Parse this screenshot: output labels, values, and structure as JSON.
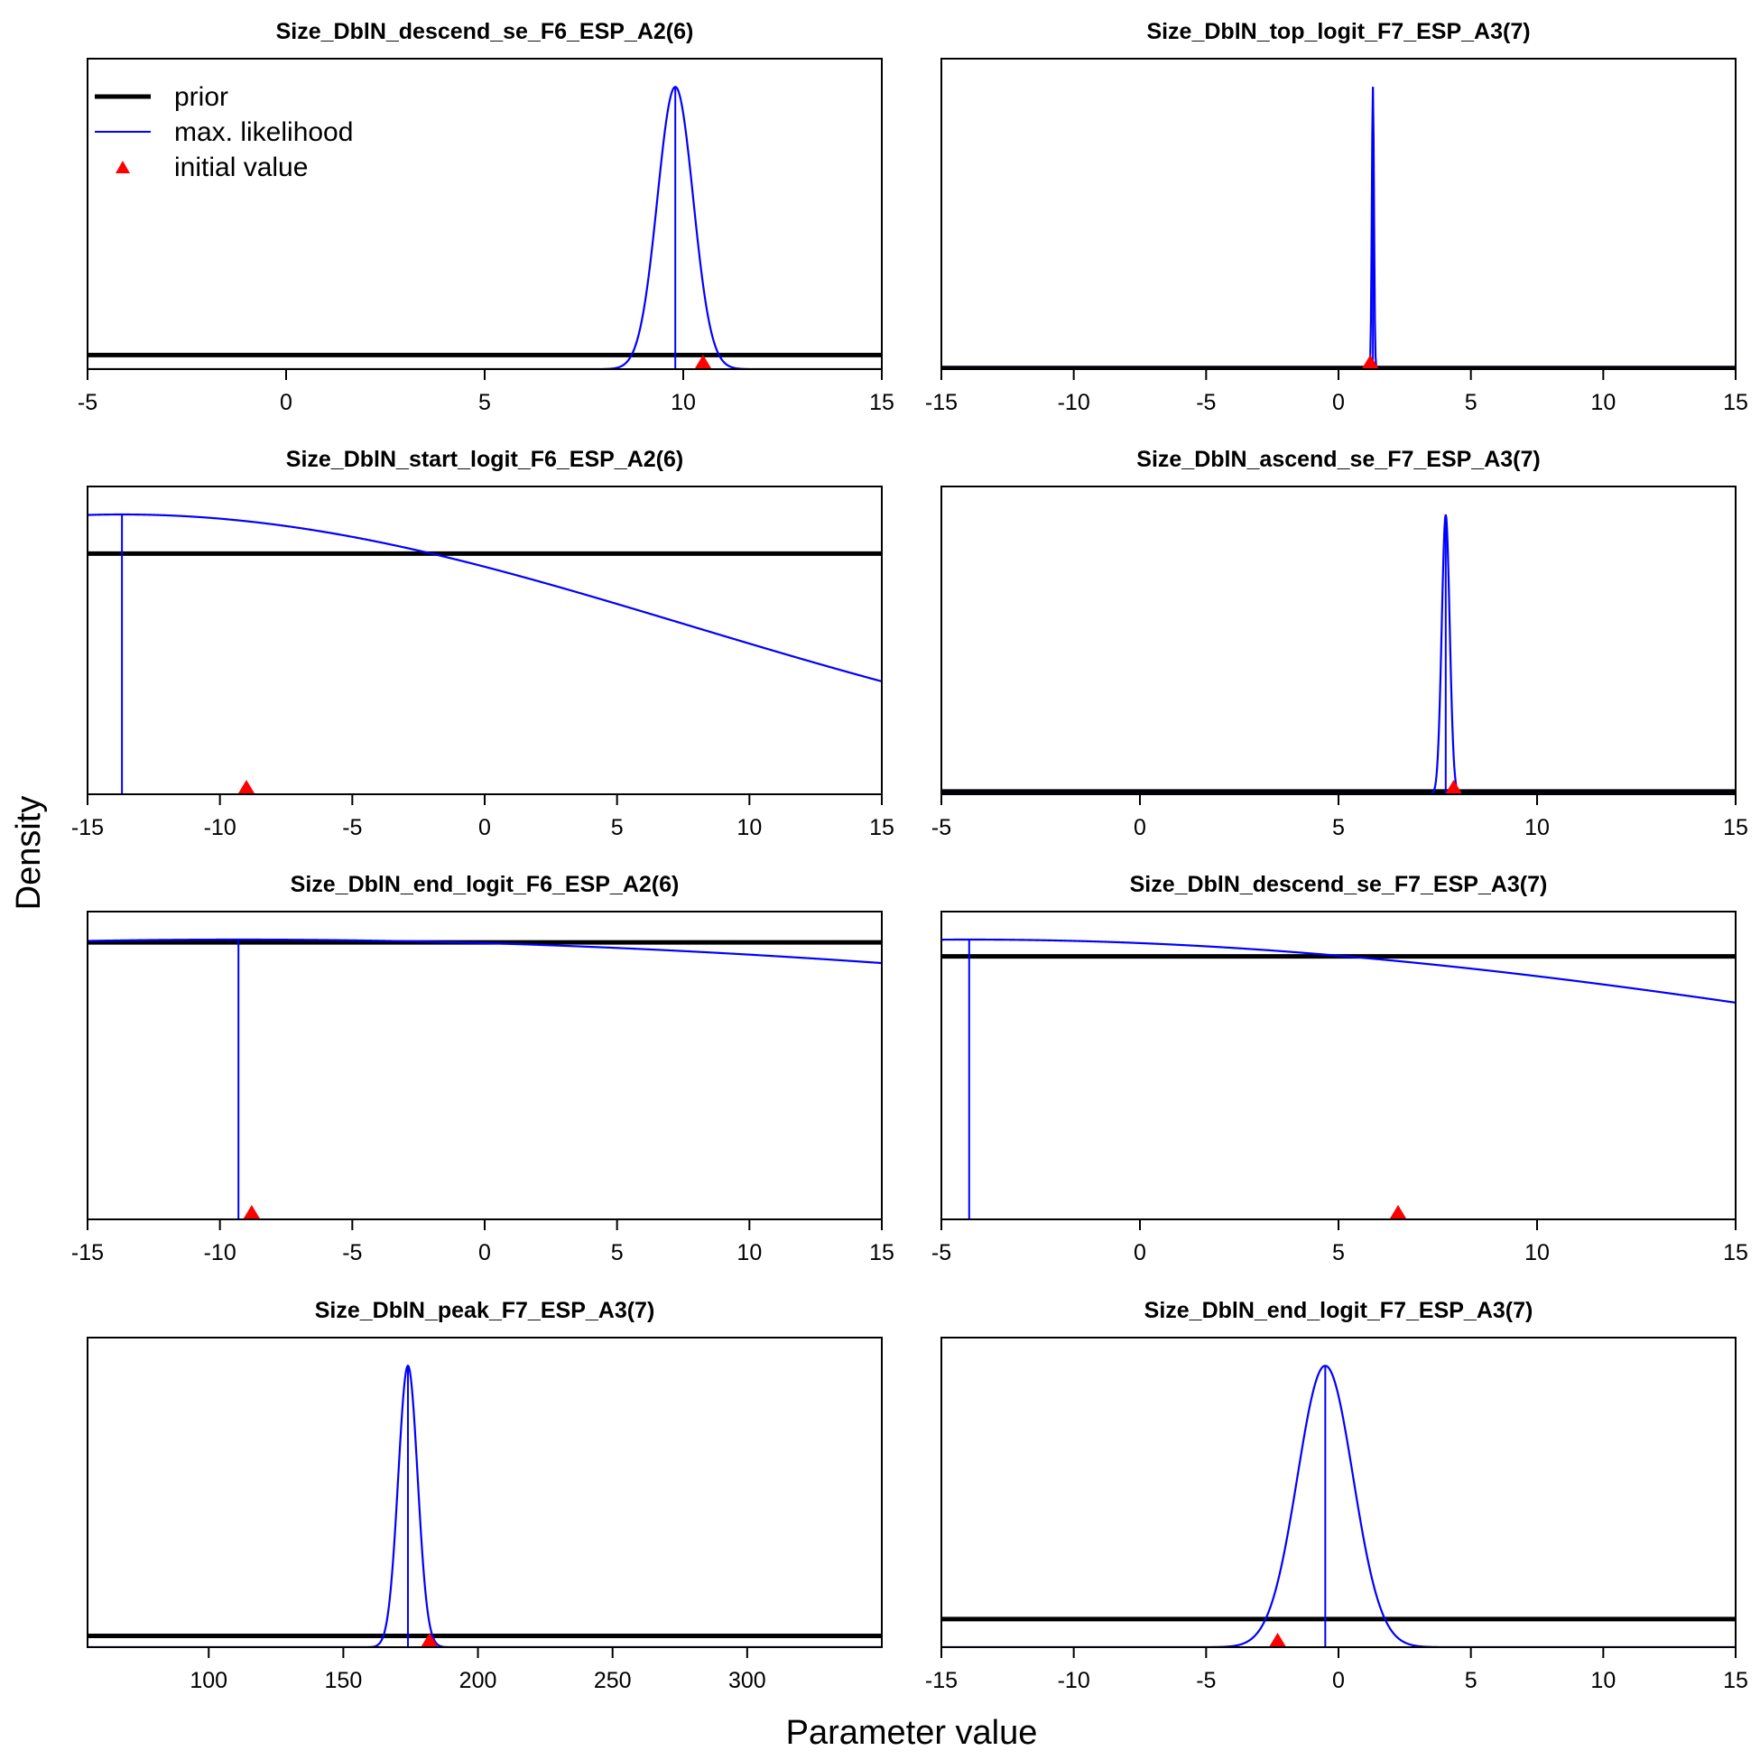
{
  "figure": {
    "xlabel": "Parameter value",
    "ylabel": "Density"
  },
  "legend": {
    "entries": [
      {
        "label": "prior",
        "kind": "line",
        "color": "#000000"
      },
      {
        "label": "max. likelihood",
        "kind": "line",
        "color": "#0000ff"
      },
      {
        "label": "initial value",
        "kind": "marker",
        "color": "#ff0000"
      }
    ]
  },
  "colors": {
    "prior": "#000000",
    "mle": "#0000ff",
    "initial": "#ff0000"
  },
  "chart_data": [
    {
      "type": "line",
      "title": "Size_DblN_descend_se_F6_ESP_A2(6)",
      "xlim": [
        -5,
        15
      ],
      "ticks": [
        -5,
        0,
        5,
        10,
        15
      ],
      "ylim": [
        0,
        1.1
      ],
      "prior": {
        "kind": "flat",
        "level": 0.05
      },
      "mle": {
        "kind": "normal",
        "mean": 9.8,
        "sd": 0.45,
        "peak": 1.0
      },
      "initial": 10.5,
      "legend": true
    },
    {
      "type": "line",
      "title": "Size_DblN_top_logit_F7_ESP_A3(7)",
      "xlim": [
        -15,
        15
      ],
      "ticks": [
        -15,
        -10,
        -5,
        0,
        5,
        10,
        15
      ],
      "ylim": [
        0,
        1.1
      ],
      "prior": {
        "kind": "flat",
        "level": 0.004
      },
      "mle": {
        "kind": "normal",
        "mean": 1.3,
        "sd": 0.04,
        "peak": 1.0
      },
      "initial": 1.2
    },
    {
      "type": "line",
      "title": "Size_DblN_start_logit_F6_ESP_A2(6)",
      "xlim": [
        -15,
        15
      ],
      "ticks": [
        -15,
        -10,
        -5,
        0,
        5,
        10,
        15
      ],
      "ylim": [
        0,
        1.1
      ],
      "prior": {
        "kind": "flat",
        "level": 0.86
      },
      "mle": {
        "kind": "normal",
        "mean": -13.7,
        "sd": 21.3,
        "peak": 1.0,
        "vline": -13.7
      },
      "initial": -9
    },
    {
      "type": "line",
      "title": "Size_DblN_ascend_se_F7_ESP_A3(7)",
      "xlim": [
        -5,
        15
      ],
      "ticks": [
        -5,
        0,
        5,
        10,
        15
      ],
      "ylim": [
        0,
        1.1
      ],
      "prior": {
        "kind": "flat",
        "level": 0.01
      },
      "mle": {
        "kind": "normal",
        "mean": 7.7,
        "sd": 0.1,
        "peak": 1.0
      },
      "initial": 7.9
    },
    {
      "type": "line",
      "title": "Size_DblN_end_logit_F6_ESP_A2(6)",
      "xlim": [
        -15,
        15
      ],
      "ticks": [
        -15,
        -10,
        -5,
        0,
        5,
        10,
        15
      ],
      "ylim": [
        0,
        1.1
      ],
      "prior": {
        "kind": "flat",
        "level": 0.99
      },
      "mle": {
        "kind": "normal",
        "mean": -9.3,
        "sd": 58,
        "peak": 1.0,
        "vline": -9.3
      },
      "initial": -8.8
    },
    {
      "type": "line",
      "title": "Size_DblN_descend_se_F7_ESP_A3(7)",
      "xlim": [
        -5,
        15
      ],
      "ticks": [
        -5,
        0,
        5,
        10,
        15
      ],
      "ylim": [
        0,
        1.1
      ],
      "prior": {
        "kind": "flat",
        "level": 0.94
      },
      "mle": {
        "kind": "normal",
        "mean": -4.3,
        "sd": 27,
        "peak": 1.0,
        "vline": -4.3
      },
      "initial": 6.5
    },
    {
      "type": "line",
      "title": "Size_DblN_peak_F7_ESP_A3(7)",
      "xlim": [
        55,
        350
      ],
      "ticks": [
        100,
        150,
        200,
        250,
        300
      ],
      "ylim": [
        0,
        1.1
      ],
      "prior": {
        "kind": "flat",
        "level": 0.04
      },
      "mle": {
        "kind": "normal",
        "mean": 174,
        "sd": 3.6,
        "peak": 1.0
      },
      "initial": 182
    },
    {
      "type": "line",
      "title": "Size_DblN_end_logit_F7_ESP_A3(7)",
      "xlim": [
        -15,
        15
      ],
      "ticks": [
        -15,
        -10,
        -5,
        0,
        5,
        10,
        15
      ],
      "ylim": [
        0,
        1.1
      ],
      "prior": {
        "kind": "flat",
        "level": 0.1
      },
      "mle": {
        "kind": "normal",
        "mean": -0.5,
        "sd": 1.05,
        "peak": 1.0
      },
      "initial": -2.3
    }
  ]
}
